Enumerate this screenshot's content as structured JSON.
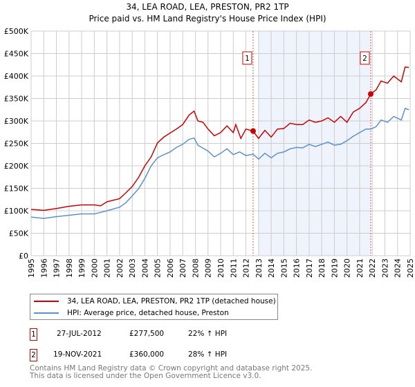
{
  "title": {
    "line1": "34, LEA ROAD, LEA, PRESTON, PR2 1TP",
    "line2": "Price paid vs. HM Land Registry's House Price Index (HPI)"
  },
  "chart_data": {
    "type": "line",
    "ylim": [
      0,
      500000
    ],
    "xlim": [
      1995,
      2025
    ],
    "yticks": [
      {
        "v": 0,
        "label": "£0"
      },
      {
        "v": 50000,
        "label": "£50K"
      },
      {
        "v": 100000,
        "label": "£100K"
      },
      {
        "v": 150000,
        "label": "£150K"
      },
      {
        "v": 200000,
        "label": "£200K"
      },
      {
        "v": 250000,
        "label": "£250K"
      },
      {
        "v": 300000,
        "label": "£300K"
      },
      {
        "v": 350000,
        "label": "£350K"
      },
      {
        "v": 400000,
        "label": "£400K"
      },
      {
        "v": 450000,
        "label": "£450K"
      },
      {
        "v": 500000,
        "label": "£500K"
      }
    ],
    "xticks": [
      "1995",
      "1996",
      "1997",
      "1998",
      "1999",
      "2000",
      "2001",
      "2002",
      "2003",
      "2004",
      "2005",
      "2006",
      "2007",
      "2008",
      "2009",
      "2010",
      "2011",
      "2012",
      "2013",
      "2014",
      "2015",
      "2016",
      "2017",
      "2018",
      "2019",
      "2020",
      "2021",
      "2022",
      "2023",
      "2024",
      "2025"
    ],
    "grid": true,
    "shaded_range": [
      2013.0,
      2021.88
    ],
    "series": [
      {
        "name": "34, LEA ROAD, LEA, PRESTON, PR2 1TP (detached house)",
        "color": "#cc0000",
        "x": [
          1995,
          1996,
          1997,
          1998,
          1999,
          2000,
          2000.5,
          2001,
          2002,
          2002.5,
          2003,
          2003.5,
          2004,
          2004.5,
          2005,
          2005.5,
          2006,
          2006.5,
          2007,
          2007.5,
          2007.9,
          2008.2,
          2008.6,
          2009,
          2009.5,
          2010,
          2010.5,
          2011,
          2011.2,
          2011.6,
          2012,
          2012.57,
          2013,
          2013.5,
          2014,
          2014.5,
          2015,
          2015.5,
          2016,
          2016.5,
          2017,
          2017.5,
          2018,
          2018.5,
          2019,
          2019.5,
          2020,
          2020.5,
          2021,
          2021.5,
          2021.88,
          2022.3,
          2022.7,
          2023.2,
          2023.7,
          2024.3,
          2024.6,
          2024.9
        ],
        "y": [
          103,
          101,
          105,
          110,
          113,
          113,
          111,
          120,
          127,
          140,
          154,
          174,
          200,
          220,
          251,
          264,
          273,
          282,
          292,
          313,
          322,
          300,
          297,
          282,
          267,
          274,
          289,
          274,
          292,
          261,
          282,
          277.5,
          261,
          279,
          264,
          282,
          283,
          295,
          292,
          292,
          302,
          297,
          300,
          307,
          297,
          310,
          297,
          320,
          328,
          341,
          360,
          369,
          389,
          384,
          400,
          387,
          420,
          419
        ]
      },
      {
        "name": "HPI: Average price, detached house, Preston",
        "color": "#5b8fd0",
        "x": [
          1995,
          1996,
          1997,
          1998,
          1999,
          2000,
          2001,
          2002,
          2002.5,
          2003,
          2003.5,
          2004,
          2004.5,
          2005,
          2005.5,
          2006,
          2006.5,
          2007,
          2007.5,
          2007.9,
          2008.2,
          2009,
          2009.5,
          2010,
          2010.5,
          2011,
          2011.5,
          2012,
          2012.57,
          2013,
          2013.5,
          2014,
          2014.5,
          2015,
          2015.5,
          2016,
          2016.5,
          2017,
          2017.5,
          2018,
          2018.5,
          2019,
          2019.5,
          2020,
          2020.5,
          2021,
          2021.5,
          2021.88,
          2022.3,
          2022.7,
          2023.2,
          2023.7,
          2024.3,
          2024.6,
          2024.9
        ],
        "y": [
          86,
          83,
          87,
          90,
          93,
          93,
          100,
          108,
          118,
          133,
          149,
          172,
          200,
          218,
          225,
          231,
          241,
          248,
          259,
          262,
          246,
          233,
          220,
          228,
          238,
          225,
          231,
          223,
          226,
          215,
          228,
          218,
          228,
          231,
          238,
          241,
          240,
          248,
          243,
          248,
          253,
          246,
          248,
          256,
          266,
          274,
          282,
          282,
          287,
          302,
          297,
          310,
          302,
          328,
          325
        ]
      }
    ],
    "y_units": "thousands GBP",
    "annotations": [
      {
        "label": "1",
        "x": 2012.57,
        "y": 277.5
      },
      {
        "label": "2",
        "x": 2021.88,
        "y": 360
      }
    ]
  },
  "legend": {
    "property": "34, LEA ROAD, LEA, PRESTON, PR2 1TP (detached house)",
    "hpi": "HPI: Average price, detached house, Preston"
  },
  "sales": [
    {
      "num": "1",
      "date": "27-JUL-2012",
      "price": "£277,500",
      "hpi": "22% ↑ HPI"
    },
    {
      "num": "2",
      "date": "19-NOV-2021",
      "price": "£360,000",
      "hpi": "28% ↑ HPI"
    }
  ],
  "footer": {
    "line1": "Contains HM Land Registry data © Crown copyright and database right 2025.",
    "line2": "This data is licensed under the Open Government Licence v3.0."
  }
}
